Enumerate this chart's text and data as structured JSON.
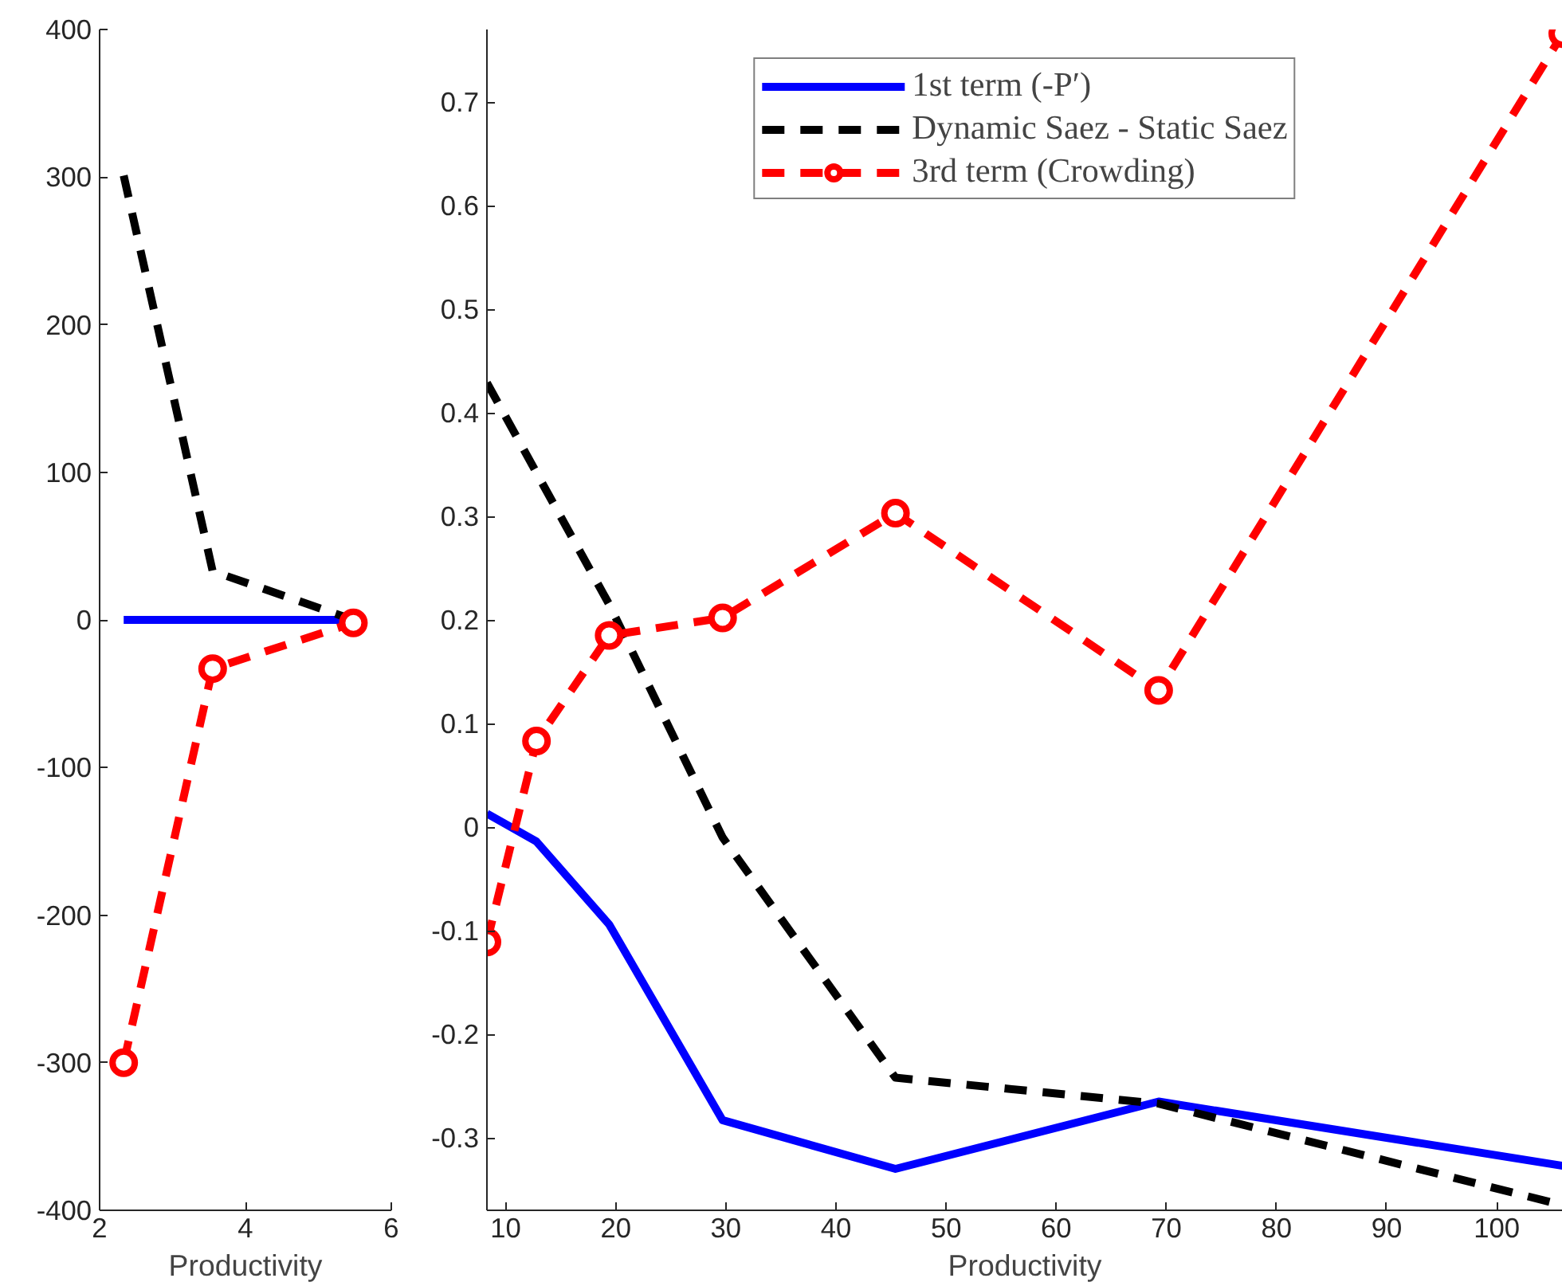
{
  "chart_data": [
    {
      "type": "line",
      "xlabel": "Productivity",
      "xlim": [
        2,
        6
      ],
      "xticks": [
        2,
        4,
        6
      ],
      "ylim": [
        -400,
        400
      ],
      "yticks": [
        -400,
        -300,
        -200,
        -100,
        0,
        100,
        200,
        300,
        400
      ],
      "grid": false,
      "legend": false,
      "x": [
        2.33,
        3.55,
        5.48
      ],
      "series": [
        {
          "color": "#0000ff",
          "values": [
            0,
            0,
            0
          ],
          "line_style": "solid",
          "marker": "none"
        },
        {
          "color": "#000000",
          "values": [
            301,
            33,
            0
          ],
          "line_style": "dashed",
          "marker": "none"
        },
        {
          "color": "#ff0000",
          "values": [
            -300,
            -33,
            -2
          ],
          "line_style": "dashed",
          "marker": "circle"
        }
      ]
    },
    {
      "type": "line",
      "xlabel": "Productivity",
      "xlim": [
        8.3,
        106
      ],
      "xticks": [
        10,
        20,
        30,
        40,
        50,
        60,
        70,
        80,
        90,
        100
      ],
      "ylim": [
        -0.37,
        0.77
      ],
      "yticks": [
        -0.3,
        -0.2,
        -0.1,
        0,
        0.1,
        0.2,
        0.3,
        0.4,
        0.5,
        0.6,
        0.7
      ],
      "grid": false,
      "legend": "top",
      "x": [
        8.3,
        12.8,
        19.4,
        29.7,
        45.4,
        69.3,
        106
      ],
      "series": [
        {
          "name": "1st term (-P′)",
          "color": "#0000ff",
          "values": [
            0.013,
            -0.014,
            -0.094,
            -0.283,
            -0.33,
            -0.265,
            -0.327
          ],
          "line_style": "solid",
          "marker": "none"
        },
        {
          "name": "Dynamic Saez - Static Saez",
          "color": "#000000",
          "values": [
            0.429,
            0.342,
            0.215,
            -0.01,
            -0.242,
            -0.267,
            -0.365
          ],
          "line_style": "dashed",
          "marker": "none"
        },
        {
          "name": "3rd term (Crowding)",
          "color": "#ff0000",
          "values": [
            -0.111,
            0.083,
            0.185,
            0.202,
            0.303,
            0.132,
            0.766
          ],
          "line_style": "dashed",
          "marker": "circle"
        }
      ]
    }
  ]
}
